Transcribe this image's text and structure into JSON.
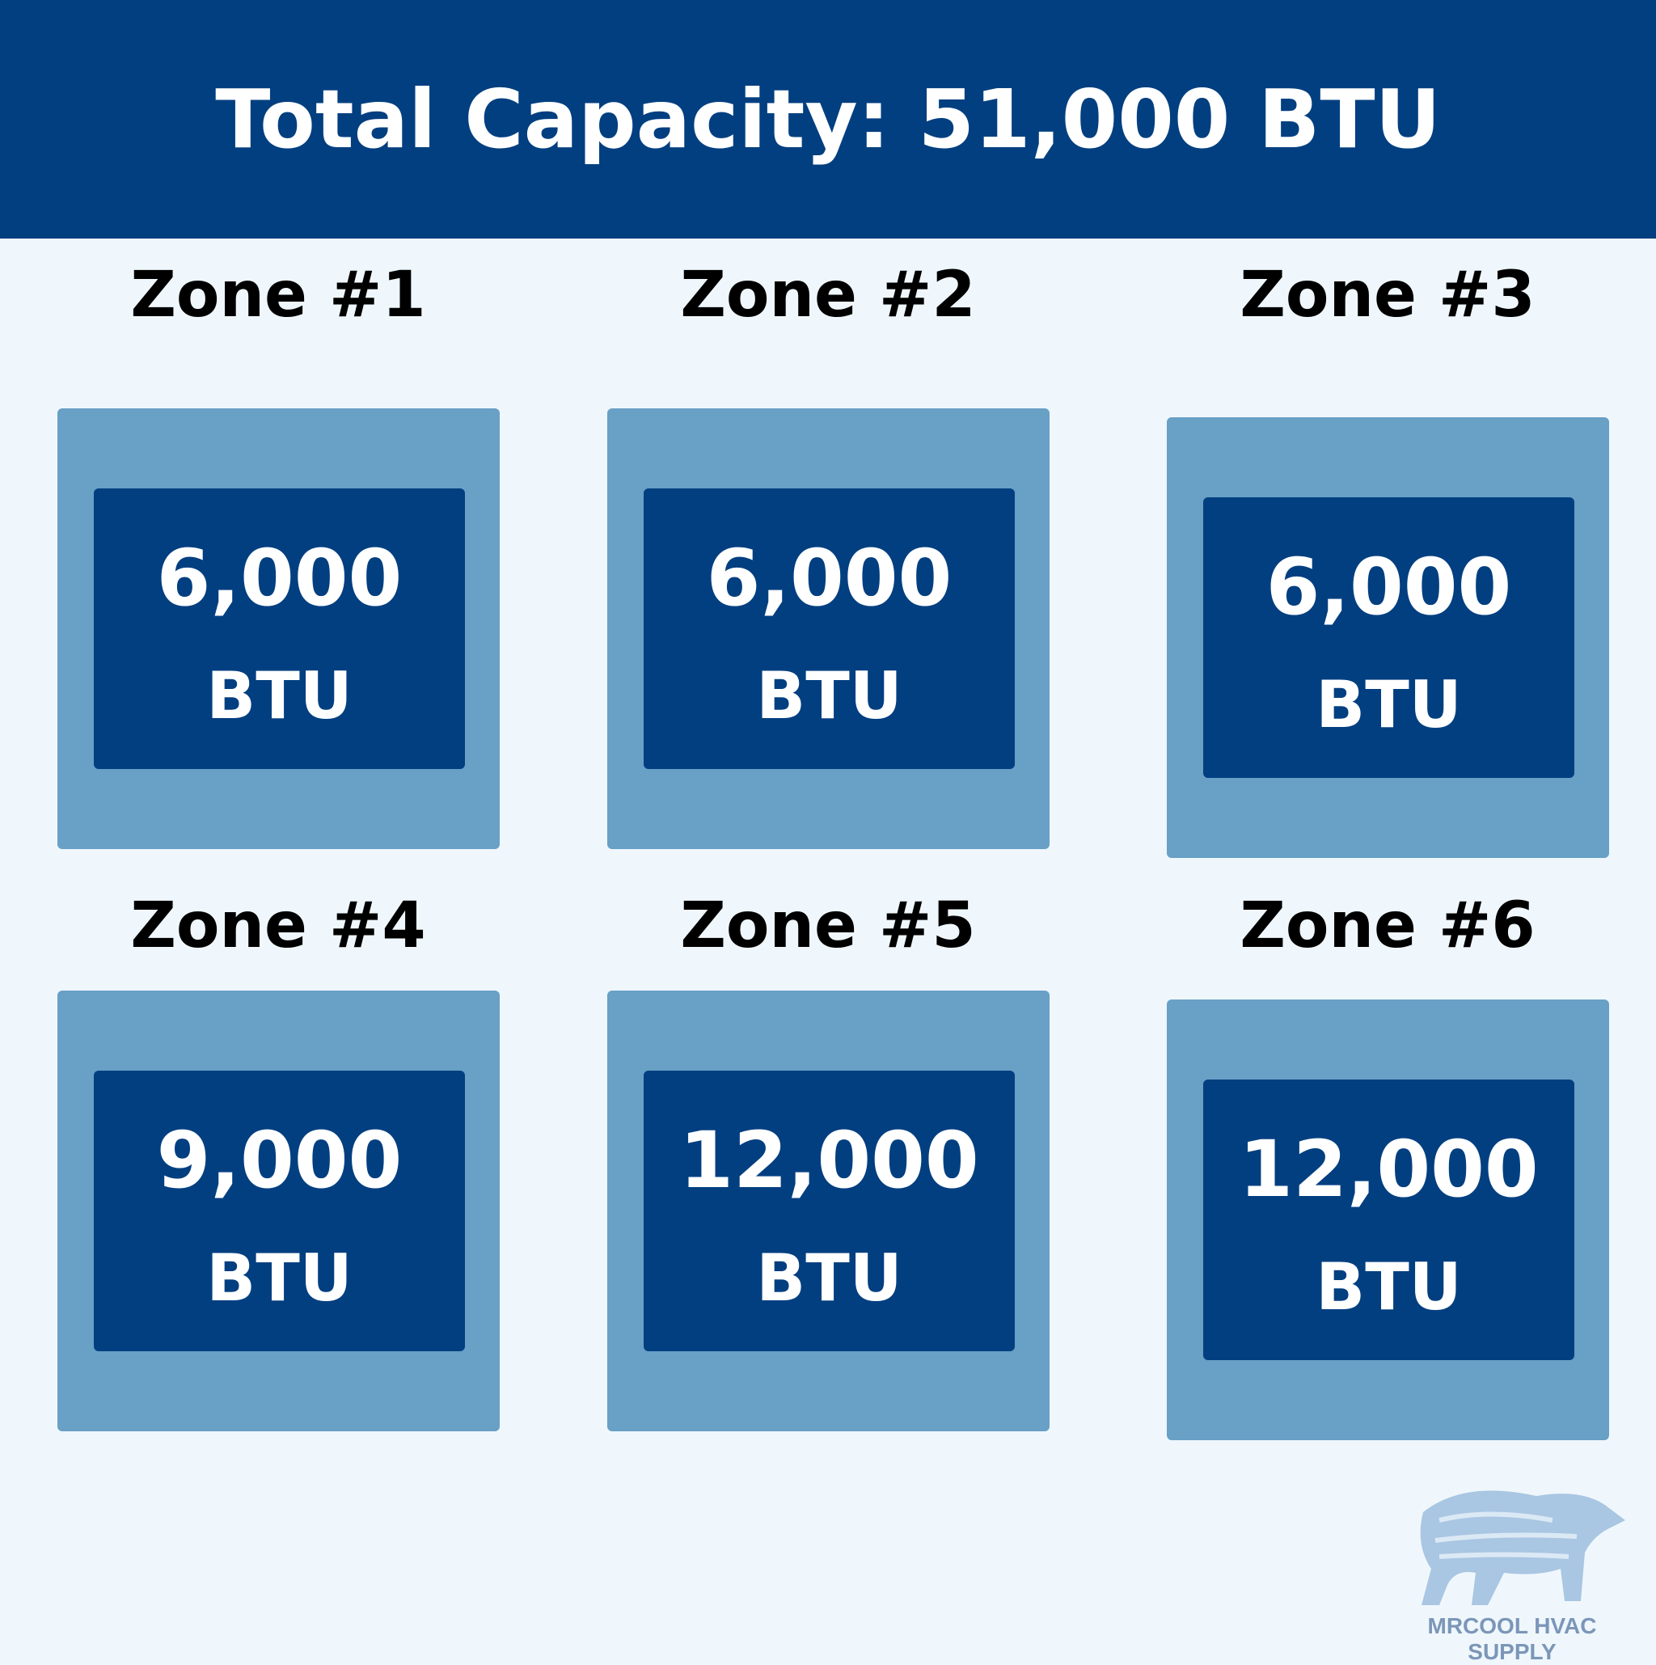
{
  "header": {
    "title": "Total Capacity: 51,000 BTU"
  },
  "zones": [
    {
      "label": "Zone #1",
      "value": "6,000",
      "unit": "BTU"
    },
    {
      "label": "Zone #2",
      "value": "6,000",
      "unit": "BTU"
    },
    {
      "label": "Zone #3",
      "value": "6,000",
      "unit": "BTU"
    },
    {
      "label": "Zone #4",
      "value": "9,000",
      "unit": "BTU"
    },
    {
      "label": "Zone #5",
      "value": "12,000",
      "unit": "BTU"
    },
    {
      "label": "Zone #6",
      "value": "12,000",
      "unit": "BTU"
    }
  ],
  "logo": {
    "text": "MRCOOL HVAC SUPPLY"
  }
}
